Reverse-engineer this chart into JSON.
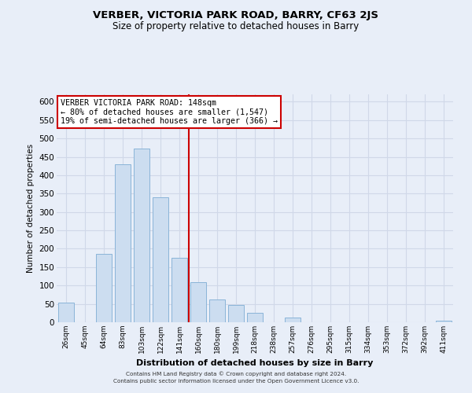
{
  "title": "VERBER, VICTORIA PARK ROAD, BARRY, CF63 2JS",
  "subtitle": "Size of property relative to detached houses in Barry",
  "xlabel": "Distribution of detached houses by size in Barry",
  "ylabel": "Number of detached properties",
  "bar_labels": [
    "26sqm",
    "45sqm",
    "64sqm",
    "83sqm",
    "103sqm",
    "122sqm",
    "141sqm",
    "160sqm",
    "180sqm",
    "199sqm",
    "218sqm",
    "238sqm",
    "257sqm",
    "276sqm",
    "295sqm",
    "315sqm",
    "334sqm",
    "353sqm",
    "372sqm",
    "392sqm",
    "411sqm"
  ],
  "bar_values": [
    53,
    0,
    187,
    430,
    473,
    340,
    175,
    108,
    62,
    46,
    25,
    0,
    12,
    0,
    0,
    0,
    0,
    0,
    0,
    0,
    5
  ],
  "bar_color": "#ccddf0",
  "bar_edge_color": "#8ab4d8",
  "vline_x_index": 7,
  "vline_color": "#cc0000",
  "ylim": [
    0,
    620
  ],
  "yticks": [
    0,
    50,
    100,
    150,
    200,
    250,
    300,
    350,
    400,
    450,
    500,
    550,
    600
  ],
  "annotation_title": "VERBER VICTORIA PARK ROAD: 148sqm",
  "annotation_line1": "← 80% of detached houses are smaller (1,547)",
  "annotation_line2": "19% of semi-detached houses are larger (366) →",
  "annotation_box_color": "white",
  "annotation_box_edge": "#cc0000",
  "footer1": "Contains HM Land Registry data © Crown copyright and database right 2024.",
  "footer2": "Contains public sector information licensed under the Open Government Licence v3.0.",
  "bg_color": "#e8eef8",
  "grid_color": "#d0d8e8",
  "title_fontsize": 9.5,
  "subtitle_fontsize": 8.5
}
